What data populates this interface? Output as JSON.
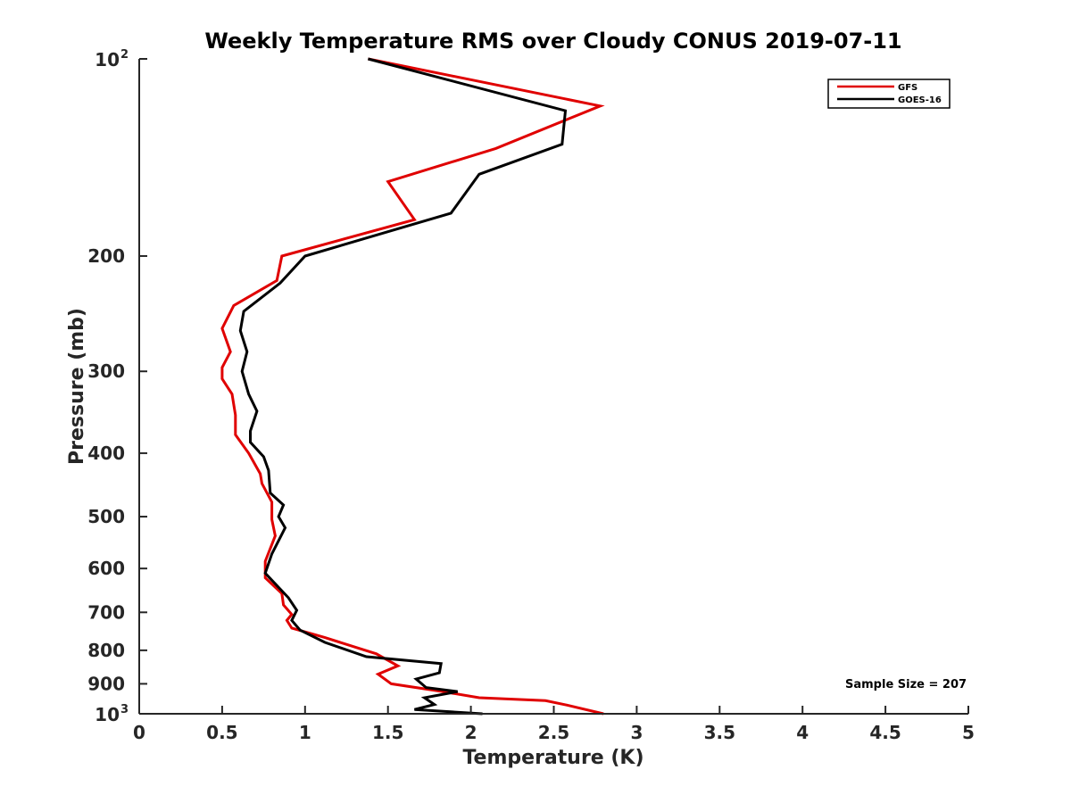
{
  "chart_data": {
    "type": "line",
    "title": "Weekly Temperature RMS over Cloudy CONUS 2019-07-11",
    "xlabel": "Temperature (K)",
    "ylabel": "Pressure (mb)",
    "xlim": [
      0,
      5
    ],
    "ylim": [
      100,
      1000
    ],
    "y_scale": "log",
    "y_reversed": true,
    "grid": false,
    "legend_position": "top-right",
    "x_ticks": [
      {
        "value": 0,
        "label": "0"
      },
      {
        "value": 0.5,
        "label": "0.5"
      },
      {
        "value": 1,
        "label": "1"
      },
      {
        "value": 1.5,
        "label": "1.5"
      },
      {
        "value": 2,
        "label": "2"
      },
      {
        "value": 2.5,
        "label": "2.5"
      },
      {
        "value": 3,
        "label": "3"
      },
      {
        "value": 3.5,
        "label": "3.5"
      },
      {
        "value": 4,
        "label": "4"
      },
      {
        "value": 4.5,
        "label": "4.5"
      },
      {
        "value": 5,
        "label": "5"
      }
    ],
    "y_ticks": [
      {
        "value": 100,
        "label": "10",
        "sup": "2"
      },
      {
        "value": 200,
        "label": "200",
        "sup": ""
      },
      {
        "value": 300,
        "label": "300",
        "sup": ""
      },
      {
        "value": 400,
        "label": "400",
        "sup": ""
      },
      {
        "value": 500,
        "label": "500",
        "sup": ""
      },
      {
        "value": 600,
        "label": "600",
        "sup": ""
      },
      {
        "value": 700,
        "label": "700",
        "sup": ""
      },
      {
        "value": 800,
        "label": "800",
        "sup": ""
      },
      {
        "value": 900,
        "label": "900",
        "sup": ""
      },
      {
        "value": 1000,
        "label": "10",
        "sup": "3"
      }
    ],
    "annotation": "Sample Size = 207",
    "series": [
      {
        "name": "GFS",
        "color": "#e00000",
        "points": [
          [
            1.38,
            100
          ],
          [
            2.78,
            118
          ],
          [
            2.15,
            137
          ],
          [
            1.5,
            154
          ],
          [
            1.66,
            176
          ],
          [
            0.86,
            200
          ],
          [
            0.83,
            218
          ],
          [
            0.57,
            238
          ],
          [
            0.5,
            258
          ],
          [
            0.55,
            280
          ],
          [
            0.5,
            296
          ],
          [
            0.5,
            308
          ],
          [
            0.56,
            325
          ],
          [
            0.58,
            350
          ],
          [
            0.58,
            375
          ],
          [
            0.66,
            400
          ],
          [
            0.73,
            430
          ],
          [
            0.74,
            445
          ],
          [
            0.8,
            475
          ],
          [
            0.8,
            505
          ],
          [
            0.82,
            535
          ],
          [
            0.76,
            585
          ],
          [
            0.76,
            620
          ],
          [
            0.86,
            655
          ],
          [
            0.87,
            682
          ],
          [
            0.92,
            705
          ],
          [
            0.89,
            720
          ],
          [
            0.92,
            740
          ],
          [
            1.12,
            765
          ],
          [
            1.43,
            810
          ],
          [
            1.56,
            845
          ],
          [
            1.44,
            870
          ],
          [
            1.52,
            900
          ],
          [
            1.83,
            925
          ],
          [
            2.05,
            945
          ],
          [
            2.45,
            955
          ],
          [
            2.58,
            970
          ],
          [
            2.8,
            1000
          ]
        ]
      },
      {
        "name": "GOES-16",
        "color": "#000000",
        "points": [
          [
            1.38,
            100
          ],
          [
            2.57,
            120
          ],
          [
            2.55,
            135
          ],
          [
            2.05,
            150
          ],
          [
            1.88,
            172
          ],
          [
            1.0,
            200
          ],
          [
            0.85,
            220
          ],
          [
            0.63,
            243
          ],
          [
            0.61,
            260
          ],
          [
            0.65,
            280
          ],
          [
            0.62,
            300
          ],
          [
            0.66,
            325
          ],
          [
            0.71,
            345
          ],
          [
            0.67,
            370
          ],
          [
            0.67,
            385
          ],
          [
            0.75,
            405
          ],
          [
            0.78,
            425
          ],
          [
            0.79,
            460
          ],
          [
            0.87,
            480
          ],
          [
            0.84,
            500
          ],
          [
            0.88,
            520
          ],
          [
            0.8,
            570
          ],
          [
            0.76,
            610
          ],
          [
            0.9,
            665
          ],
          [
            0.95,
            695
          ],
          [
            0.92,
            720
          ],
          [
            0.97,
            745
          ],
          [
            1.12,
            778
          ],
          [
            1.37,
            818
          ],
          [
            1.82,
            838
          ],
          [
            1.81,
            866
          ],
          [
            1.67,
            885
          ],
          [
            1.73,
            912
          ],
          [
            1.92,
            925
          ],
          [
            1.72,
            945
          ],
          [
            1.78,
            968
          ],
          [
            1.66,
            985
          ],
          [
            2.07,
            1000
          ]
        ]
      }
    ]
  }
}
